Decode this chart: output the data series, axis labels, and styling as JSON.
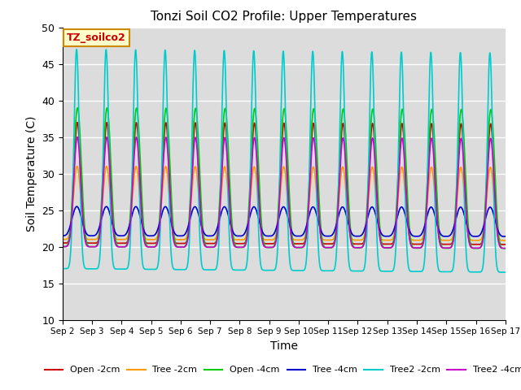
{
  "title": "Tonzi Soil CO2 Profile: Upper Temperatures",
  "xlabel": "Time",
  "ylabel": "Soil Temperature (C)",
  "ylim": [
    10,
    50
  ],
  "xlim_days": 15,
  "background_color": "#dcdcdc",
  "annotation_text": "TZ_soilco2",
  "annotation_color": "#cc0000",
  "annotation_bg": "#ffffcc",
  "annotation_border": "#cc8800",
  "series_order": [
    "Open -2cm",
    "Tree -2cm",
    "Open -4cm",
    "Tree -4cm",
    "Tree2 -2cm",
    "Tree2 -4cm"
  ],
  "series_colors": {
    "Open -2cm": "#cc0000",
    "Tree -2cm": "#ff9900",
    "Open -4cm": "#00cc00",
    "Tree -4cm": "#0000cc",
    "Tree2 -2cm": "#00cccc",
    "Tree2 -4cm": "#cc00cc"
  },
  "tick_dates": [
    "Sep 2",
    "Sep 3",
    "Sep 4",
    "Sep 5",
    "Sep 6",
    "Sep 7",
    "Sep 8",
    "Sep 9",
    "Sep 10",
    "Sep 11",
    "Sep 12",
    "Sep 13",
    "Sep 14",
    "Sep 15",
    "Sep 16",
    "Sep 17"
  ],
  "series_params": {
    "Open -2cm": {
      "base": 20.5,
      "amp": 16.5,
      "phase": 0.0,
      "sharpness": 4.0,
      "trend": -0.2
    },
    "Tree -2cm": {
      "base": 21.0,
      "amp": 10.0,
      "phase": 0.05,
      "sharpness": 3.5,
      "trend": -0.15
    },
    "Open -4cm": {
      "base": 20.0,
      "amp": 19.0,
      "phase": -0.05,
      "sharpness": 3.0,
      "trend": -0.25
    },
    "Tree -4cm": {
      "base": 21.5,
      "amp": 4.0,
      "phase": 0.1,
      "sharpness": 2.0,
      "trend": -0.1
    },
    "Tree2 -2cm": {
      "base": 17.0,
      "amp": 30.0,
      "phase": 0.15,
      "sharpness": 6.0,
      "trend": -0.5
    },
    "Tree2 -4cm": {
      "base": 20.0,
      "amp": 15.0,
      "phase": 0.0,
      "sharpness": 3.5,
      "trend": -0.2
    }
  }
}
